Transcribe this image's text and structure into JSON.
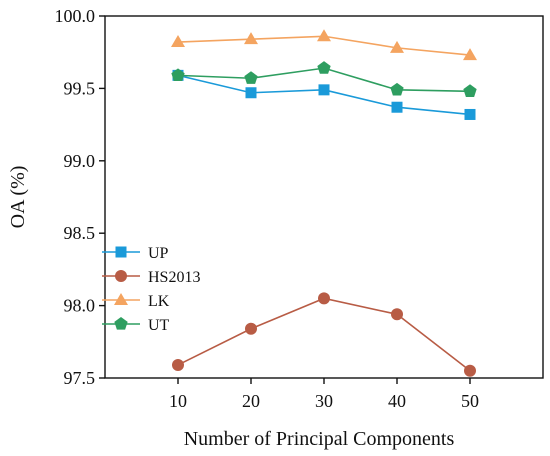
{
  "chart_data": {
    "type": "line",
    "title": "",
    "xlabel": "Number of Principal Components",
    "ylabel": "OA (%)",
    "x": [
      10,
      20,
      30,
      40,
      50
    ],
    "xlim": [
      0,
      60
    ],
    "ylim": [
      97.5,
      100.0
    ],
    "x_ticks": [
      "10",
      "20",
      "30",
      "40",
      "50"
    ],
    "y_ticks": [
      "97.5",
      "98.0",
      "98.5",
      "99.0",
      "99.5",
      "100.0"
    ],
    "grid": false,
    "legend_position": "lower-left",
    "series": [
      {
        "name": "UP",
        "color": "#1a9ad9",
        "marker": "square",
        "values": [
          99.59,
          99.47,
          99.49,
          99.37,
          99.32
        ]
      },
      {
        "name": "HS2013",
        "color": "#b85c45",
        "marker": "circle",
        "values": [
          97.59,
          97.84,
          98.05,
          97.94,
          97.55
        ]
      },
      {
        "name": "LK",
        "color": "#f4a460",
        "marker": "triangle",
        "values": [
          99.82,
          99.84,
          99.86,
          99.78,
          99.73
        ]
      },
      {
        "name": "UT",
        "color": "#2e9e60",
        "marker": "pentagon",
        "values": [
          99.59,
          99.57,
          99.64,
          99.49,
          99.48
        ]
      }
    ]
  }
}
